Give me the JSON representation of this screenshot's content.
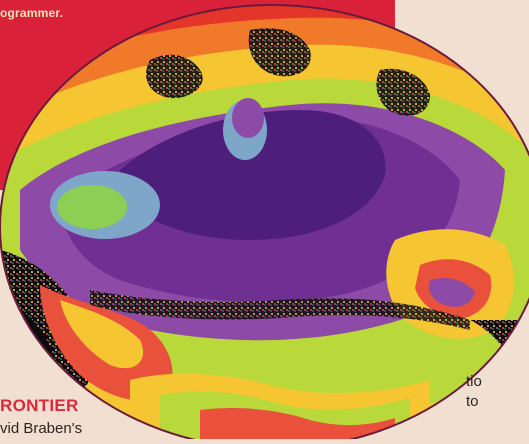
{
  "banner": {
    "text": "ogrammer."
  },
  "caption": {
    "heading": "RONTIER",
    "body": "vid Braben's"
  },
  "right_column": {
    "line1": "tio",
    "line2": "to"
  },
  "colors": {
    "banner_red": "#d9223a",
    "paper": "#f1e0d2",
    "heading_red": "#e0273b"
  },
  "image": {
    "subject": "fractal-artwork"
  }
}
